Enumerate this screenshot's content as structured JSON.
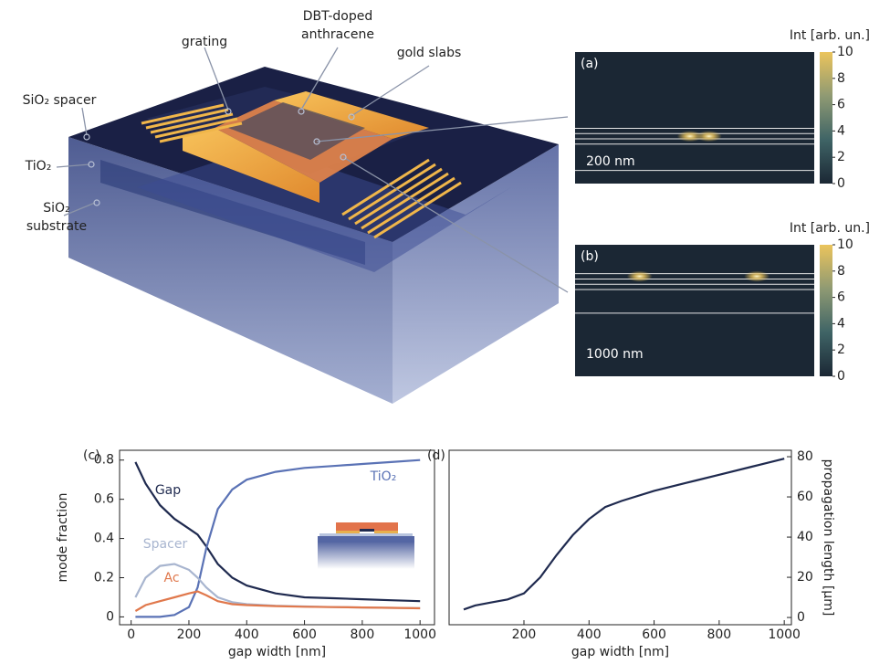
{
  "illustration": {
    "labels": [
      {
        "lines": [
          "grating"
        ]
      },
      {
        "lines": [
          "DBT-doped",
          "anthracene"
        ]
      },
      {
        "lines": [
          "gold slabs"
        ]
      },
      {
        "lines": [
          "SiO₂ spacer"
        ]
      },
      {
        "lines": [
          "TiO₂"
        ]
      },
      {
        "lines": [
          "SiO₂",
          "substrate"
        ]
      }
    ]
  },
  "chart_data": [
    {
      "type": "heatmap",
      "panel_label": "(a)",
      "annotation": "200 nm",
      "colorbar_label": "Int [arb. un.]",
      "clim": [
        0,
        10
      ],
      "cticks": [
        0,
        2,
        4,
        6,
        8,
        10
      ],
      "colormap": [
        "#1b2734",
        "#3f6466",
        "#8f9a73",
        "#ebc45c"
      ]
    },
    {
      "type": "heatmap",
      "panel_label": "(b)",
      "annotation": "1000 nm",
      "colorbar_label": "Int [arb. un.]",
      "clim": [
        0,
        10
      ],
      "cticks": [
        0,
        2,
        4,
        6,
        8,
        10
      ],
      "colormap": [
        "#1b2734",
        "#3f6466",
        "#8f9a73",
        "#ebc45c"
      ]
    },
    {
      "type": "line",
      "panel_label": "(c)",
      "x_label": "gap width [nm]",
      "y_label": "mode fraction",
      "y_side": "left",
      "x": [
        15,
        50,
        100,
        150,
        200,
        230,
        260,
        300,
        350,
        400,
        500,
        600,
        700,
        800,
        900,
        1000
      ],
      "xlim": [
        -40,
        1050
      ],
      "xticks": [
        0,
        200,
        400,
        600,
        800,
        1000
      ],
      "ylim": [
        -0.04,
        0.85
      ],
      "yticks": [
        0,
        0.2,
        0.4,
        0.6,
        0.8
      ],
      "series": [
        {
          "name": "Gap",
          "color": "#1f2a4f",
          "values": [
            0.79,
            0.68,
            0.57,
            0.5,
            0.45,
            0.42,
            0.36,
            0.27,
            0.2,
            0.16,
            0.12,
            0.1,
            0.095,
            0.09,
            0.085,
            0.08
          ]
        },
        {
          "name": "TiO₂",
          "color": "#5a72b5",
          "values": [
            0.0,
            0.0,
            0.0,
            0.01,
            0.05,
            0.15,
            0.35,
            0.55,
            0.65,
            0.7,
            0.74,
            0.76,
            0.77,
            0.78,
            0.79,
            0.8
          ]
        },
        {
          "name": "Spacer",
          "color": "#a8b5cf",
          "values": [
            0.1,
            0.2,
            0.26,
            0.27,
            0.24,
            0.2,
            0.15,
            0.1,
            0.075,
            0.065,
            0.057,
            0.053,
            0.05,
            0.048,
            0.046,
            0.045
          ]
        },
        {
          "name": "Ac",
          "color": "#e0784c",
          "values": [
            0.03,
            0.06,
            0.08,
            0.1,
            0.12,
            0.13,
            0.11,
            0.08,
            0.065,
            0.06,
            0.055,
            0.052,
            0.05,
            0.048,
            0.046,
            0.044
          ]
        }
      ]
    },
    {
      "type": "line",
      "panel_label": "(d)",
      "x_label": "gap width [nm]",
      "y_label": "propagation length [μm]",
      "y_side": "right",
      "x": [
        15,
        50,
        100,
        150,
        200,
        250,
        300,
        350,
        400,
        450,
        500,
        600,
        700,
        800,
        900,
        1000
      ],
      "xlim": [
        -30,
        1022
      ],
      "xticks": [
        200,
        400,
        600,
        800,
        1000
      ],
      "ylim": [
        -3.6,
        83.2
      ],
      "yticks": [
        0,
        20,
        40,
        60,
        80
      ],
      "series": [
        {
          "color": "#1f2a4f",
          "values": [
            4,
            6,
            7.5,
            9,
            12,
            20,
            31,
            41,
            49,
            55,
            58,
            63,
            67,
            71,
            75,
            79
          ]
        }
      ]
    }
  ]
}
